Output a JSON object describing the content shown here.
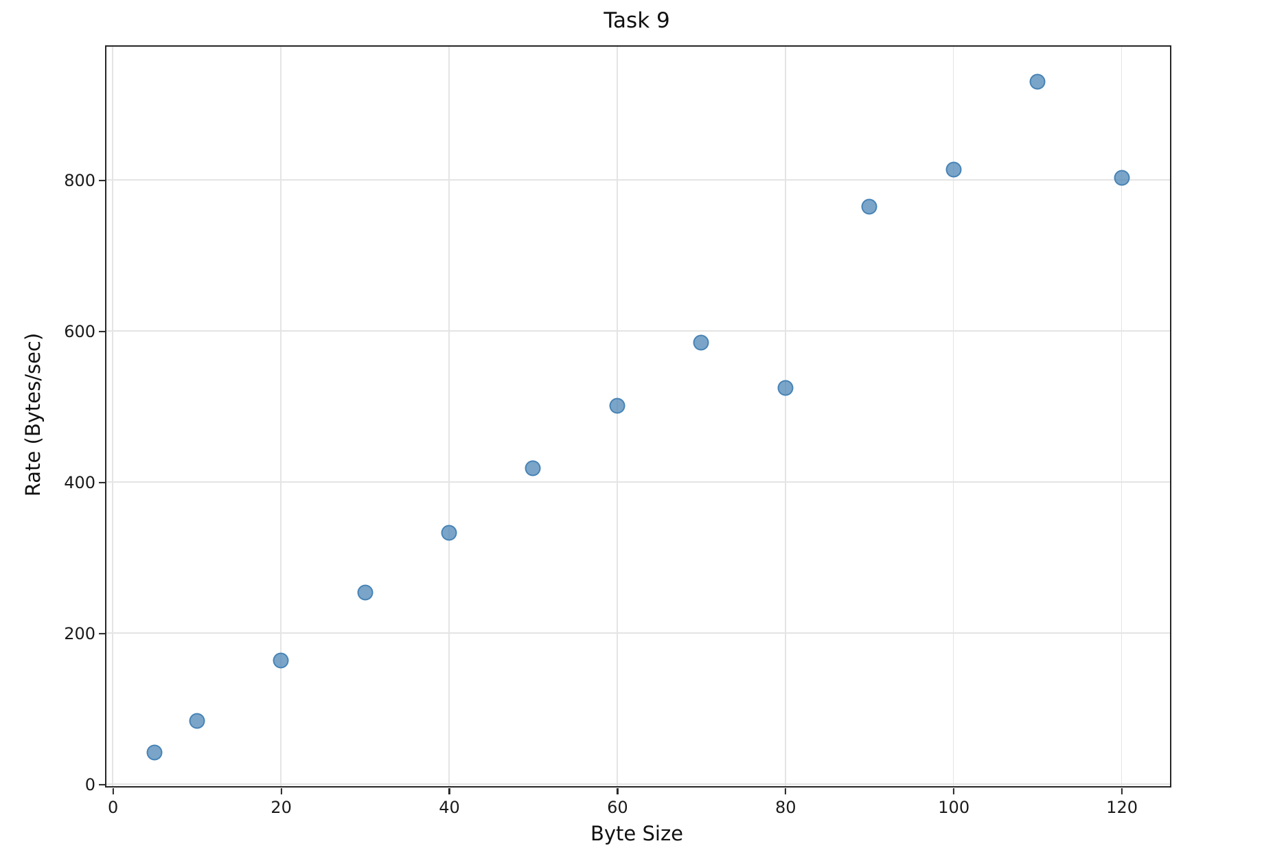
{
  "chart_data": {
    "type": "scatter",
    "title": "Task 9",
    "xlabel": "Byte Size",
    "ylabel": "Rate (Bytes/sec)",
    "points": [
      {
        "x": 5,
        "y": 42
      },
      {
        "x": 10,
        "y": 84
      },
      {
        "x": 20,
        "y": 164
      },
      {
        "x": 30,
        "y": 254
      },
      {
        "x": 40,
        "y": 333
      },
      {
        "x": 50,
        "y": 418
      },
      {
        "x": 60,
        "y": 501
      },
      {
        "x": 70,
        "y": 585
      },
      {
        "x": 80,
        "y": 525
      },
      {
        "x": 90,
        "y": 765
      },
      {
        "x": 100,
        "y": 814
      },
      {
        "x": 110,
        "y": 930
      },
      {
        "x": 120,
        "y": 803
      }
    ],
    "xticks": [
      0,
      20,
      40,
      60,
      80,
      100,
      120
    ],
    "yticks": [
      0,
      200,
      400,
      600,
      800
    ],
    "xlim": [
      -0.75,
      125.75
    ],
    "ylim": [
      -2.7,
      976.4
    ],
    "grid": true,
    "legend": "none",
    "marker_color": "#4682B4",
    "marker_fill_alpha": 0.72,
    "marker_edge_alpha": 0.95,
    "grid_color": "#e4e4e4",
    "spine_color": "#262626",
    "tick_label_color": "#1a1a1a"
  }
}
